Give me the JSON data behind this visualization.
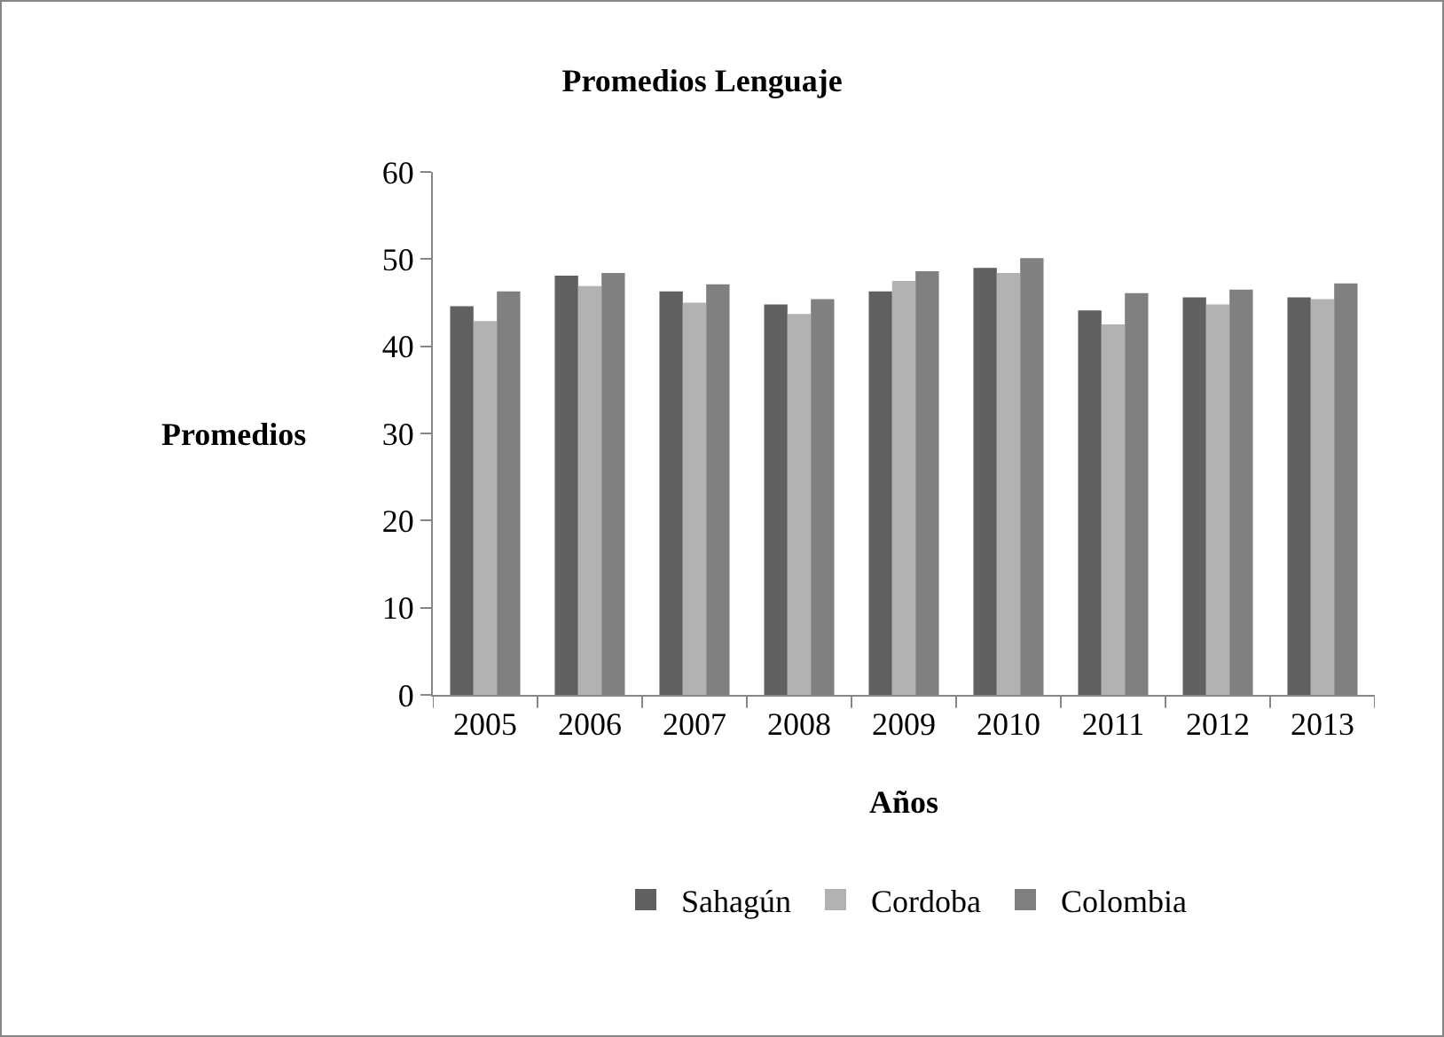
{
  "chart_data": {
    "type": "bar",
    "title": "Promedios Lenguaje",
    "xlabel": "Años",
    "ylabel": "Promedios",
    "categories": [
      "2005",
      "2006",
      "2007",
      "2008",
      "2009",
      "2010",
      "2011",
      "2012",
      "2013"
    ],
    "series": [
      {
        "name": "Sahagún",
        "color": "#606060",
        "values": [
          44.6,
          48.1,
          46.3,
          44.8,
          46.3,
          49.0,
          44.1,
          45.6,
          45.6
        ]
      },
      {
        "name": "Cordoba",
        "color": "#b2b2b2",
        "values": [
          42.9,
          46.9,
          45.0,
          43.7,
          47.5,
          48.4,
          42.5,
          44.8,
          45.4
        ]
      },
      {
        "name": "Colombia",
        "color": "#808080",
        "values": [
          46.3,
          48.4,
          47.1,
          45.4,
          48.6,
          50.1,
          46.1,
          46.5,
          47.2
        ]
      }
    ],
    "ylim": [
      0,
      60
    ],
    "yticks": [
      0,
      10,
      20,
      30,
      40,
      50,
      60
    ],
    "grid": false,
    "legend": "bottom"
  }
}
